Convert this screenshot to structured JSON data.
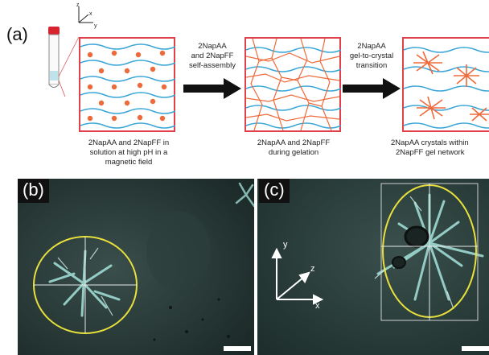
{
  "panel_a": {
    "label": "(a)",
    "tube_axes": {
      "z": "z",
      "x": "x",
      "y": "y"
    },
    "step1_caption": [
      "2NapAA and 2NapFF in",
      "solution at high pH in a",
      "magnetic field"
    ],
    "arrow1_label": [
      "2NapAA",
      "and 2NapFF",
      "self-assembly"
    ],
    "step2_caption": [
      "2NapAA and 2NapFF",
      "during gelation"
    ],
    "arrow2_label": [
      "2NapAA",
      "gel-to-crystal",
      "transition"
    ],
    "step3_caption": [
      "2NapAA crystals within",
      "2NapFF gel network"
    ]
  },
  "panel_b": {
    "label": "(b)"
  },
  "panel_c": {
    "label": "(c)",
    "axes": {
      "y": "y",
      "z": "z",
      "x": "x"
    }
  },
  "colors": {
    "frame": "#e0404a",
    "blue_fibre": "#3aa6d8",
    "orange": "#ef6a3a",
    "ellipse": "#e8e03c",
    "micro_bg": "#1d2e2c"
  }
}
